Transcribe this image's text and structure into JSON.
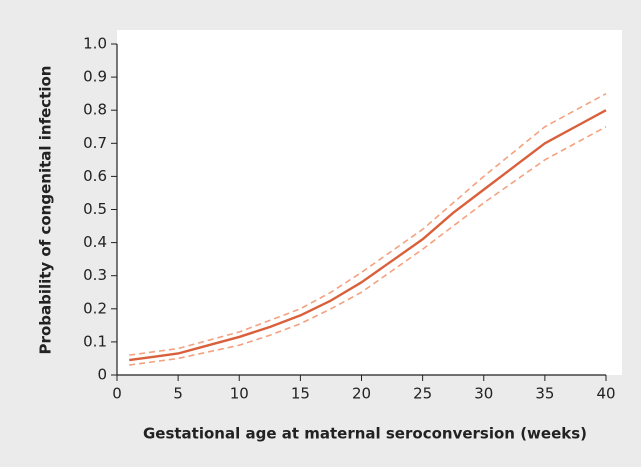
{
  "chart_data": {
    "type": "line",
    "x_label": "Gestational age at maternal seroconversion (weeks)",
    "y_label": "Probability of congenital infection",
    "x": [
      1,
      3,
      5,
      7.5,
      10,
      12.5,
      15,
      17.5,
      20,
      22.5,
      25,
      27.5,
      30,
      32.5,
      35,
      37.5,
      40
    ],
    "series": [
      {
        "color": "#f3a27f",
        "style": "dashed",
        "values": [
          0.06,
          0.07,
          0.08,
          0.105,
          0.13,
          0.165,
          0.2,
          0.25,
          0.31,
          0.375,
          0.44,
          0.52,
          0.6,
          0.675,
          0.75,
          0.8,
          0.85
        ]
      },
      {
        "color": "#f3a27f",
        "style": "dashed",
        "values": [
          0.03,
          0.04,
          0.05,
          0.07,
          0.09,
          0.12,
          0.155,
          0.2,
          0.25,
          0.315,
          0.38,
          0.45,
          0.52,
          0.585,
          0.65,
          0.7,
          0.75
        ]
      },
      {
        "color": "#d9603b",
        "style": "solid",
        "values": [
          0.045,
          0.055,
          0.065,
          0.09,
          0.115,
          0.145,
          0.18,
          0.225,
          0.28,
          0.345,
          0.41,
          0.49,
          0.56,
          0.63,
          0.7,
          0.75,
          0.8
        ]
      }
    ],
    "xlim": [
      0,
      40
    ],
    "xticks": [
      0,
      5,
      10,
      15,
      20,
      25,
      30,
      35,
      40
    ],
    "ylim": [
      0,
      1
    ],
    "yticks": [
      0,
      0.1,
      0.2,
      0.3,
      0.4,
      0.5,
      0.6,
      0.7,
      0.8,
      0.9,
      {
        "value": 1,
        "label": "1.0"
      }
    ]
  }
}
